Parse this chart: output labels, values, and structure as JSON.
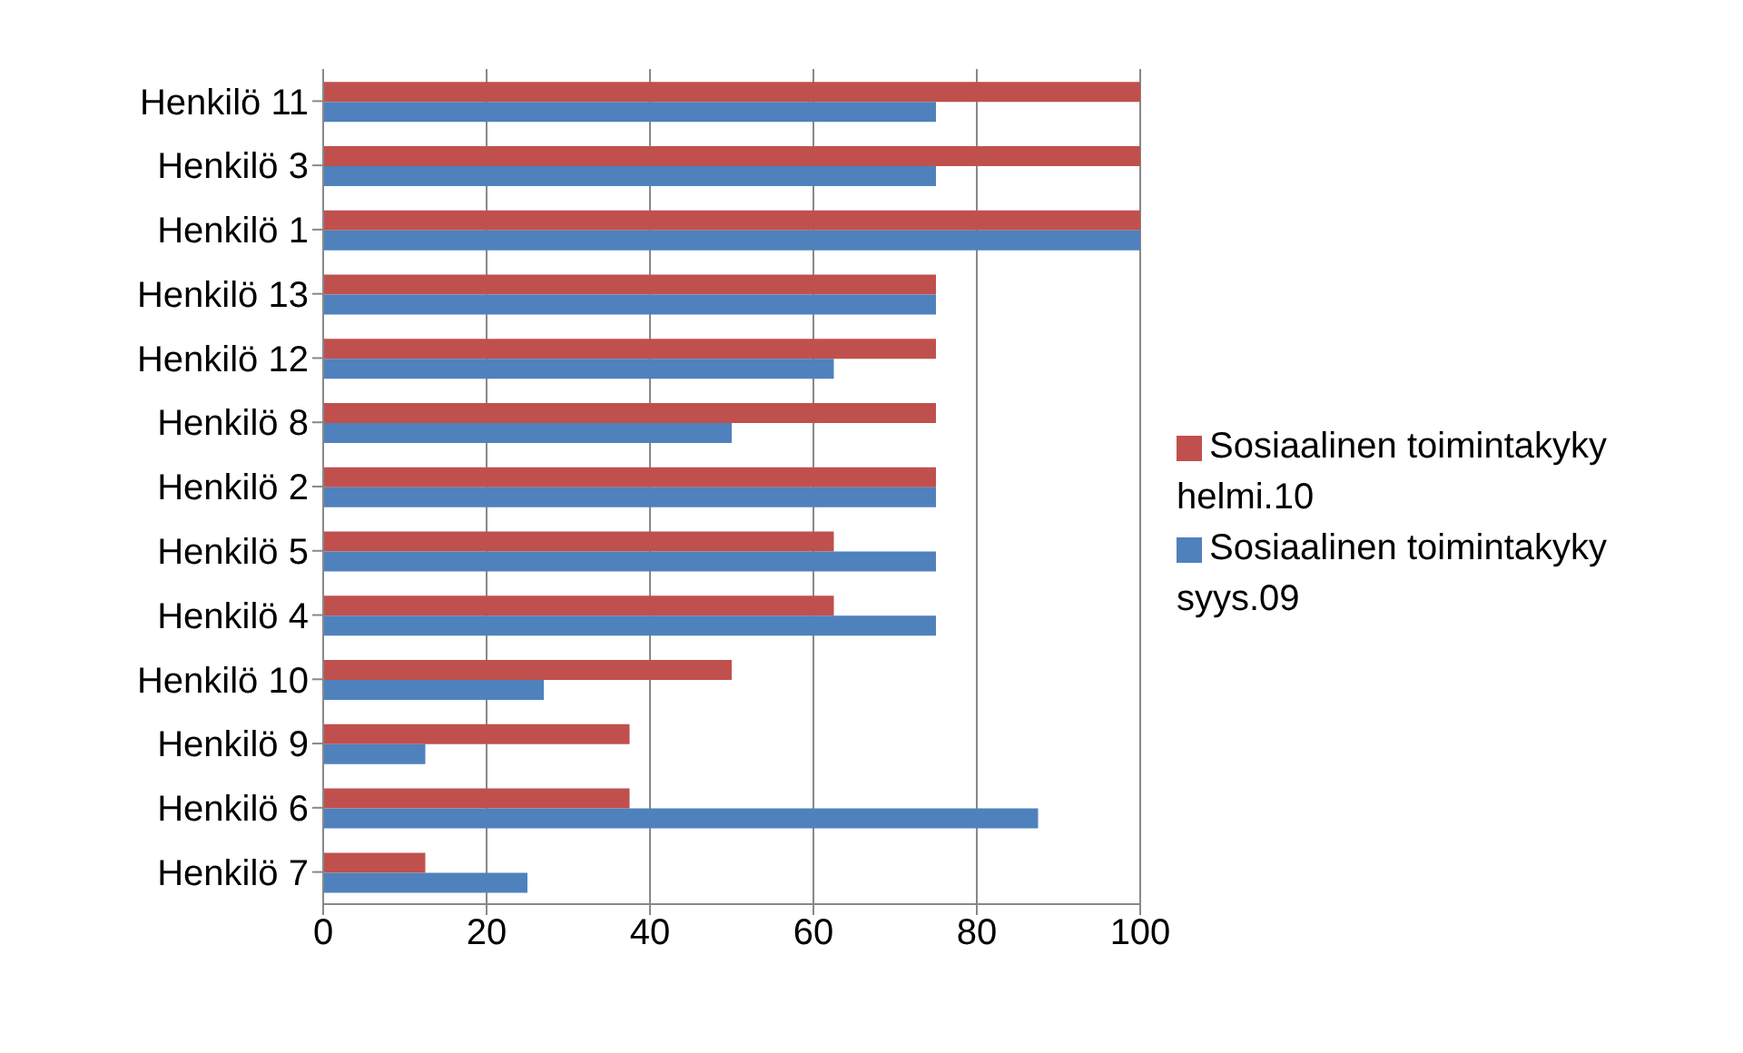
{
  "chart_data": {
    "type": "bar",
    "orientation": "horizontal",
    "categories": [
      "Henkilö 11",
      "Henkilö 3",
      "Henkilö 1",
      "Henkilö 13",
      "Henkilö 12",
      "Henkilö 8",
      "Henkilö 2",
      "Henkilö 5",
      "Henkilö 4",
      "Henkilö 10",
      "Henkilö 9",
      "Henkilö 6",
      "Henkilö 7"
    ],
    "series": [
      {
        "name": "Sosiaalinen toimintakyky helmi.10",
        "color": "#c0504d",
        "values": [
          100,
          100,
          100,
          75,
          75,
          75,
          75,
          62.5,
          62.5,
          50,
          37.5,
          37.5,
          12.5
        ]
      },
      {
        "name": "Sosiaalinen toimintakyky syys.09",
        "color": "#4f81bd",
        "values": [
          75,
          75,
          100,
          75,
          62.5,
          50,
          75,
          75,
          75,
          27,
          12.5,
          87.5,
          25
        ]
      }
    ],
    "xlim": [
      0,
      100
    ],
    "xticks": [
      0,
      20,
      40,
      60,
      80,
      100
    ],
    "grid": "x",
    "legend": "right"
  }
}
